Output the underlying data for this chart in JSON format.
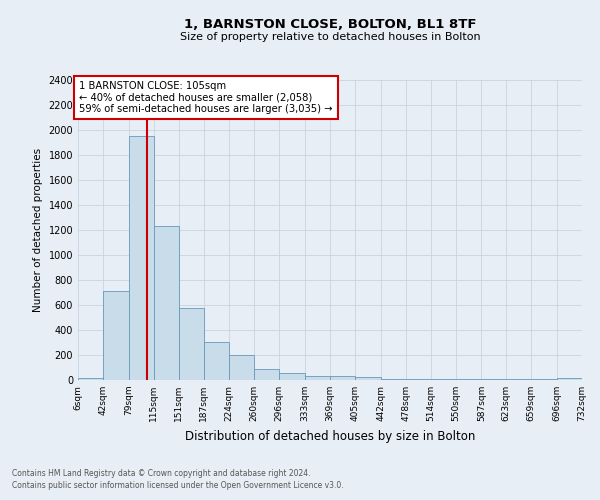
{
  "title1": "1, BARNSTON CLOSE, BOLTON, BL1 8TF",
  "title2": "Size of property relative to detached houses in Bolton",
  "xlabel": "Distribution of detached houses by size in Bolton",
  "ylabel": "Number of detached properties",
  "annotation_line1": "1 BARNSTON CLOSE: 105sqm",
  "annotation_line2": "← 40% of detached houses are smaller (2,058)",
  "annotation_line3": "59% of semi-detached houses are larger (3,035) →",
  "property_size_sqm": 105,
  "bin_edges": [
    6,
    42,
    79,
    115,
    151,
    187,
    224,
    260,
    296,
    333,
    369,
    405,
    442,
    478,
    514,
    550,
    587,
    623,
    659,
    696,
    732
  ],
  "bar_heights": [
    20,
    710,
    1950,
    1230,
    580,
    305,
    200,
    90,
    55,
    35,
    30,
    25,
    10,
    10,
    10,
    10,
    10,
    10,
    10,
    20
  ],
  "bar_color": "#c9dcea",
  "bar_edge_color": "#6699bb",
  "vline_color": "#cc0000",
  "vline_value": 105,
  "annotation_box_color": "#cc0000",
  "ylim": [
    0,
    2400
  ],
  "yticks": [
    0,
    200,
    400,
    600,
    800,
    1000,
    1200,
    1400,
    1600,
    1800,
    2000,
    2200,
    2400
  ],
  "grid_color": "#c8d4e0",
  "footer_line1": "Contains HM Land Registry data © Crown copyright and database right 2024.",
  "footer_line2": "Contains public sector information licensed under the Open Government Licence v3.0.",
  "bg_color": "#e8eef5"
}
